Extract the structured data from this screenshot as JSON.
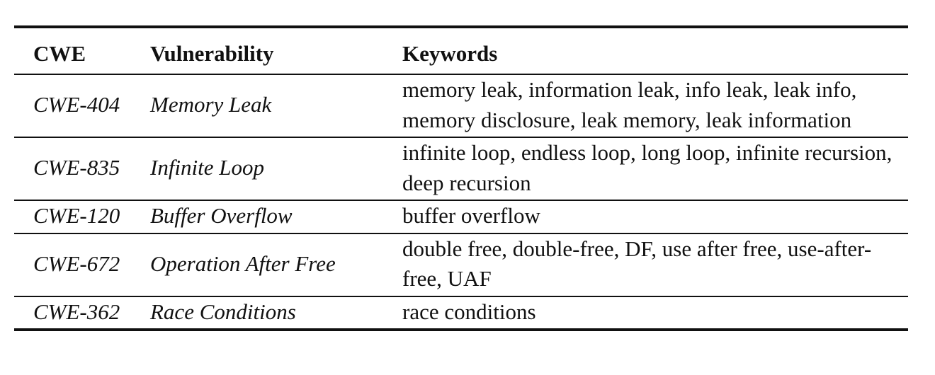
{
  "table": {
    "headers": [
      "CWE",
      "Vulnerability",
      "Keywords"
    ],
    "rows": [
      {
        "cwe": "CWE-404",
        "vulnerability": "Memory Leak",
        "keywords": "memory leak, information leak, info leak, leak info, memory disclosure, leak memory, leak information"
      },
      {
        "cwe": "CWE-835",
        "vulnerability": "Infinite Loop",
        "keywords": "infinite loop, endless loop, long loop, infinite recursion, deep recursion"
      },
      {
        "cwe": "CWE-120",
        "vulnerability": "Buffer Overflow",
        "keywords": "buffer overflow"
      },
      {
        "cwe": "CWE-672",
        "vulnerability": "Operation After Free",
        "keywords": "double free, double-free, DF, use after free, use-after-free, UAF"
      },
      {
        "cwe": "CWE-362",
        "vulnerability": "Race Conditions",
        "keywords": "race conditions"
      }
    ]
  }
}
